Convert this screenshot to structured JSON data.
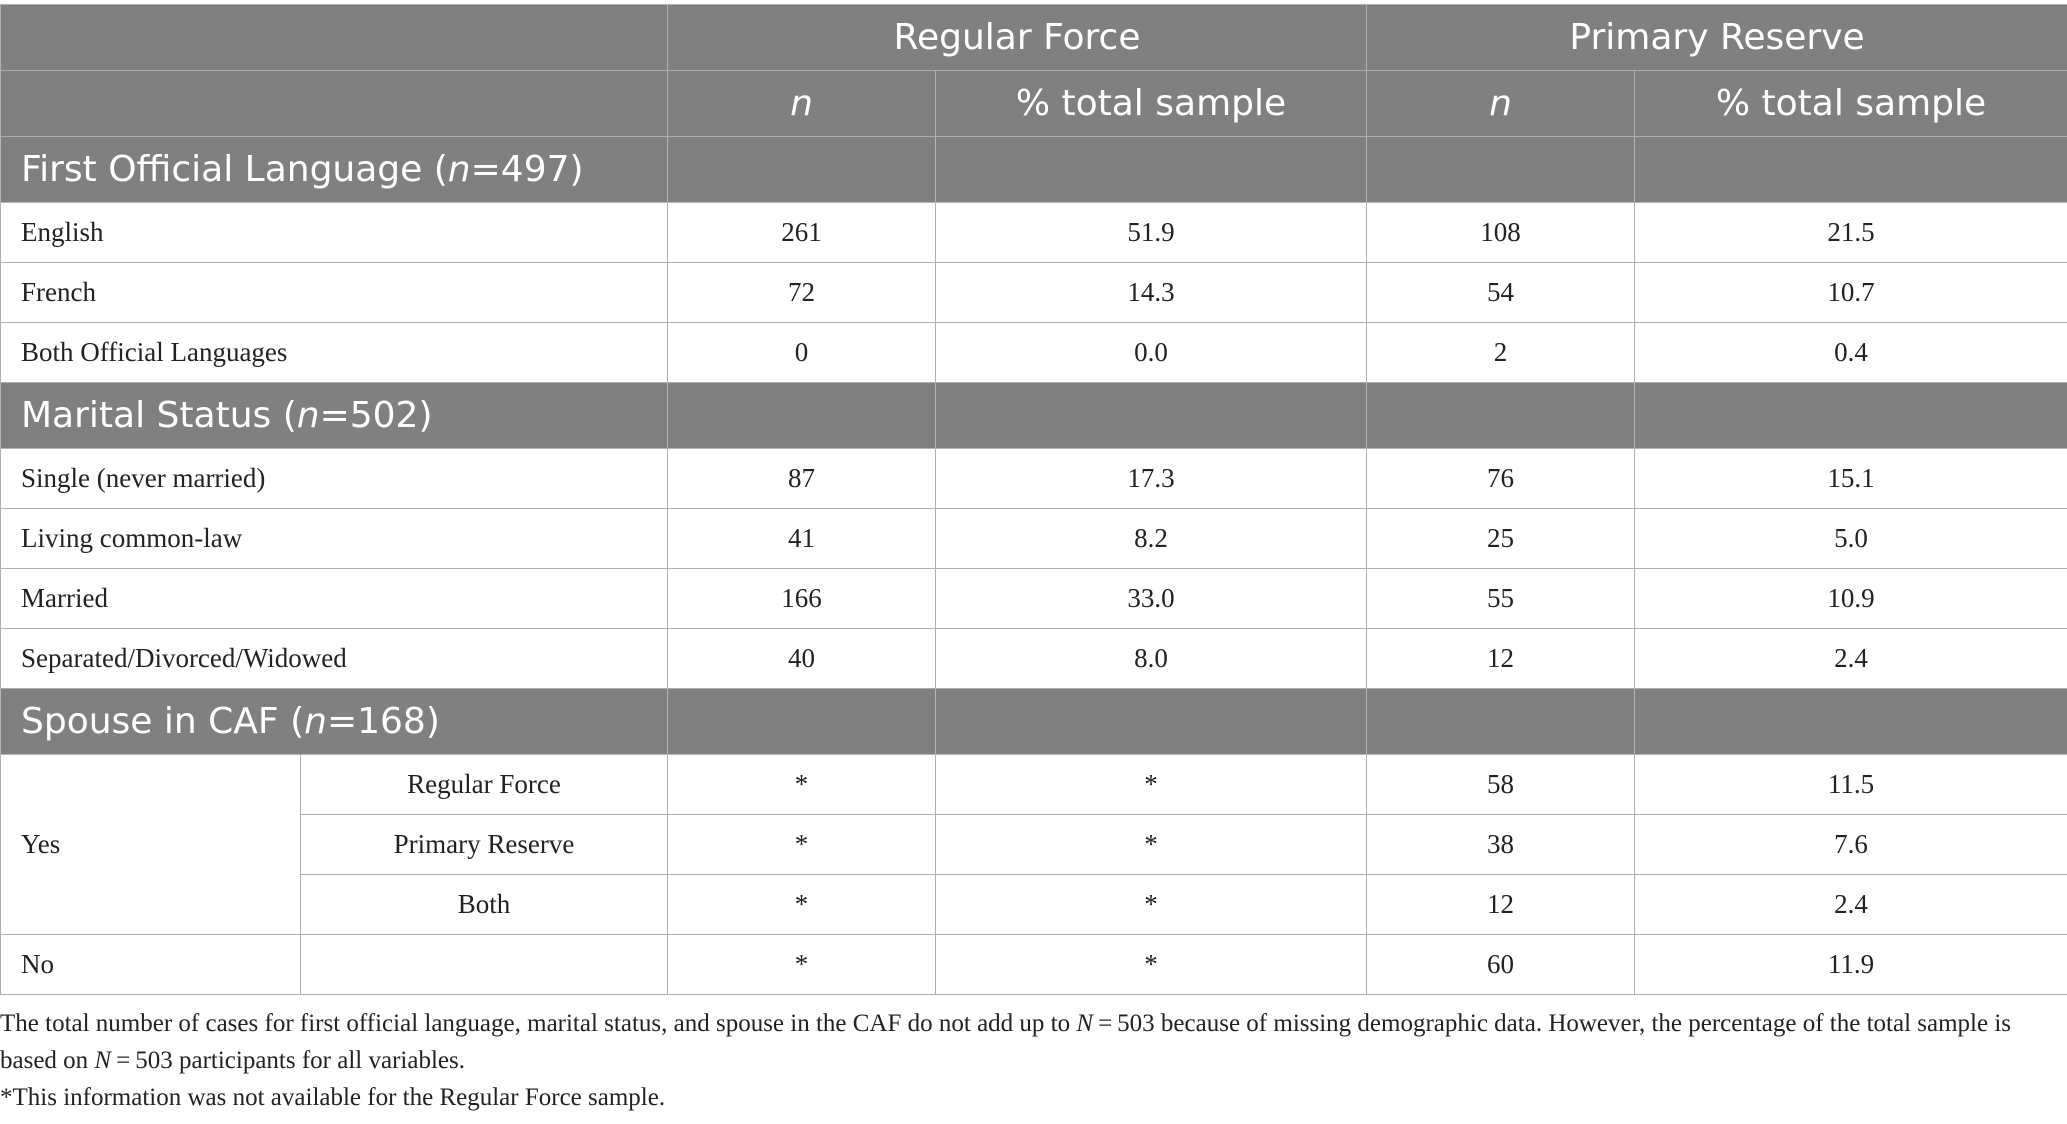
{
  "header": {
    "group1": "Regular Force",
    "group2": "Primary Reserve",
    "n_label": "n",
    "pct_label": "% total sample"
  },
  "sections": [
    {
      "title_pre": "First Official Language (",
      "title_n": "n",
      "title_post": "=497)",
      "rows": [
        {
          "label": "English",
          "rf_n": "261",
          "rf_pct": "51.9",
          "pr_n": "108",
          "pr_pct": "21.5"
        },
        {
          "label": "French",
          "rf_n": "72",
          "rf_pct": "14.3",
          "pr_n": "54",
          "pr_pct": "10.7"
        },
        {
          "label": "Both Official Languages",
          "rf_n": "0",
          "rf_pct": "0.0",
          "pr_n": "2",
          "pr_pct": "0.4"
        }
      ]
    },
    {
      "title_pre": "Marital Status (",
      "title_n": "n",
      "title_post": "=502)",
      "rows": [
        {
          "label": "Single (never married)",
          "rf_n": "87",
          "rf_pct": "17.3",
          "pr_n": "76",
          "pr_pct": "15.1"
        },
        {
          "label": "Living common-law",
          "rf_n": "41",
          "rf_pct": "8.2",
          "pr_n": "25",
          "pr_pct": "5.0"
        },
        {
          "label": "Married",
          "rf_n": "166",
          "rf_pct": "33.0",
          "pr_n": "55",
          "pr_pct": "10.9"
        },
        {
          "label": "Separated/Divorced/Widowed",
          "rf_n": "40",
          "rf_pct": "8.0",
          "pr_n": "12",
          "pr_pct": "2.4"
        }
      ]
    },
    {
      "title_pre": "Spouse in CAF (",
      "title_n": "n",
      "title_post": "=168)",
      "yes_label": "Yes",
      "no_label": "No",
      "yes_rows": [
        {
          "sublabel": "Regular Force",
          "rf_n": "*",
          "rf_pct": "*",
          "pr_n": "58",
          "pr_pct": "11.5"
        },
        {
          "sublabel": "Primary Reserve",
          "rf_n": "*",
          "rf_pct": "*",
          "pr_n": "38",
          "pr_pct": "7.6"
        },
        {
          "sublabel": "Both",
          "rf_n": "*",
          "rf_pct": "*",
          "pr_n": "12",
          "pr_pct": "2.4"
        }
      ],
      "no_row": {
        "rf_n": "*",
        "rf_pct": "*",
        "pr_n": "60",
        "pr_pct": "11.9"
      }
    }
  ],
  "notes": {
    "line1_a": "The total number of cases for first official language, marital status, and spouse in the CAF do not add up to ",
    "N": "N",
    "line1_b": " = 503 because of missing demographic data. However, the percentage of the total sample is based on ",
    "line1_c": " = 503 participants for all variables.",
    "line2": "*This information was not available for the Regular Force sample."
  }
}
